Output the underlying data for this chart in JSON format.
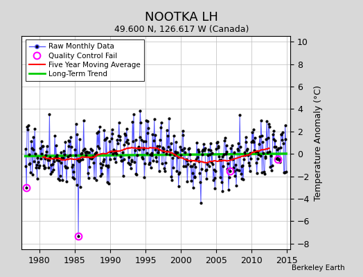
{
  "title": "NOOTKA LH",
  "subtitle": "49.600 N, 126.617 W (Canada)",
  "ylabel": "Temperature Anomaly (°C)",
  "credit": "Berkeley Earth",
  "xlim": [
    1977.5,
    2015.5
  ],
  "ylim": [
    -8.5,
    10.5
  ],
  "yticks": [
    -8,
    -6,
    -4,
    -2,
    0,
    2,
    4,
    6,
    8,
    10
  ],
  "xticks": [
    1980,
    1985,
    1990,
    1995,
    2000,
    2005,
    2010,
    2015
  ],
  "bg_color": "#d8d8d8",
  "plot_bg_color": "#ffffff",
  "raw_line_color": "#5555ff",
  "raw_marker_color": "#000000",
  "qc_fail_color": "#ff00ff",
  "moving_avg_color": "#ff0000",
  "trend_color": "#00cc00",
  "start_year": 1978,
  "end_year": 2014,
  "seed": 17
}
